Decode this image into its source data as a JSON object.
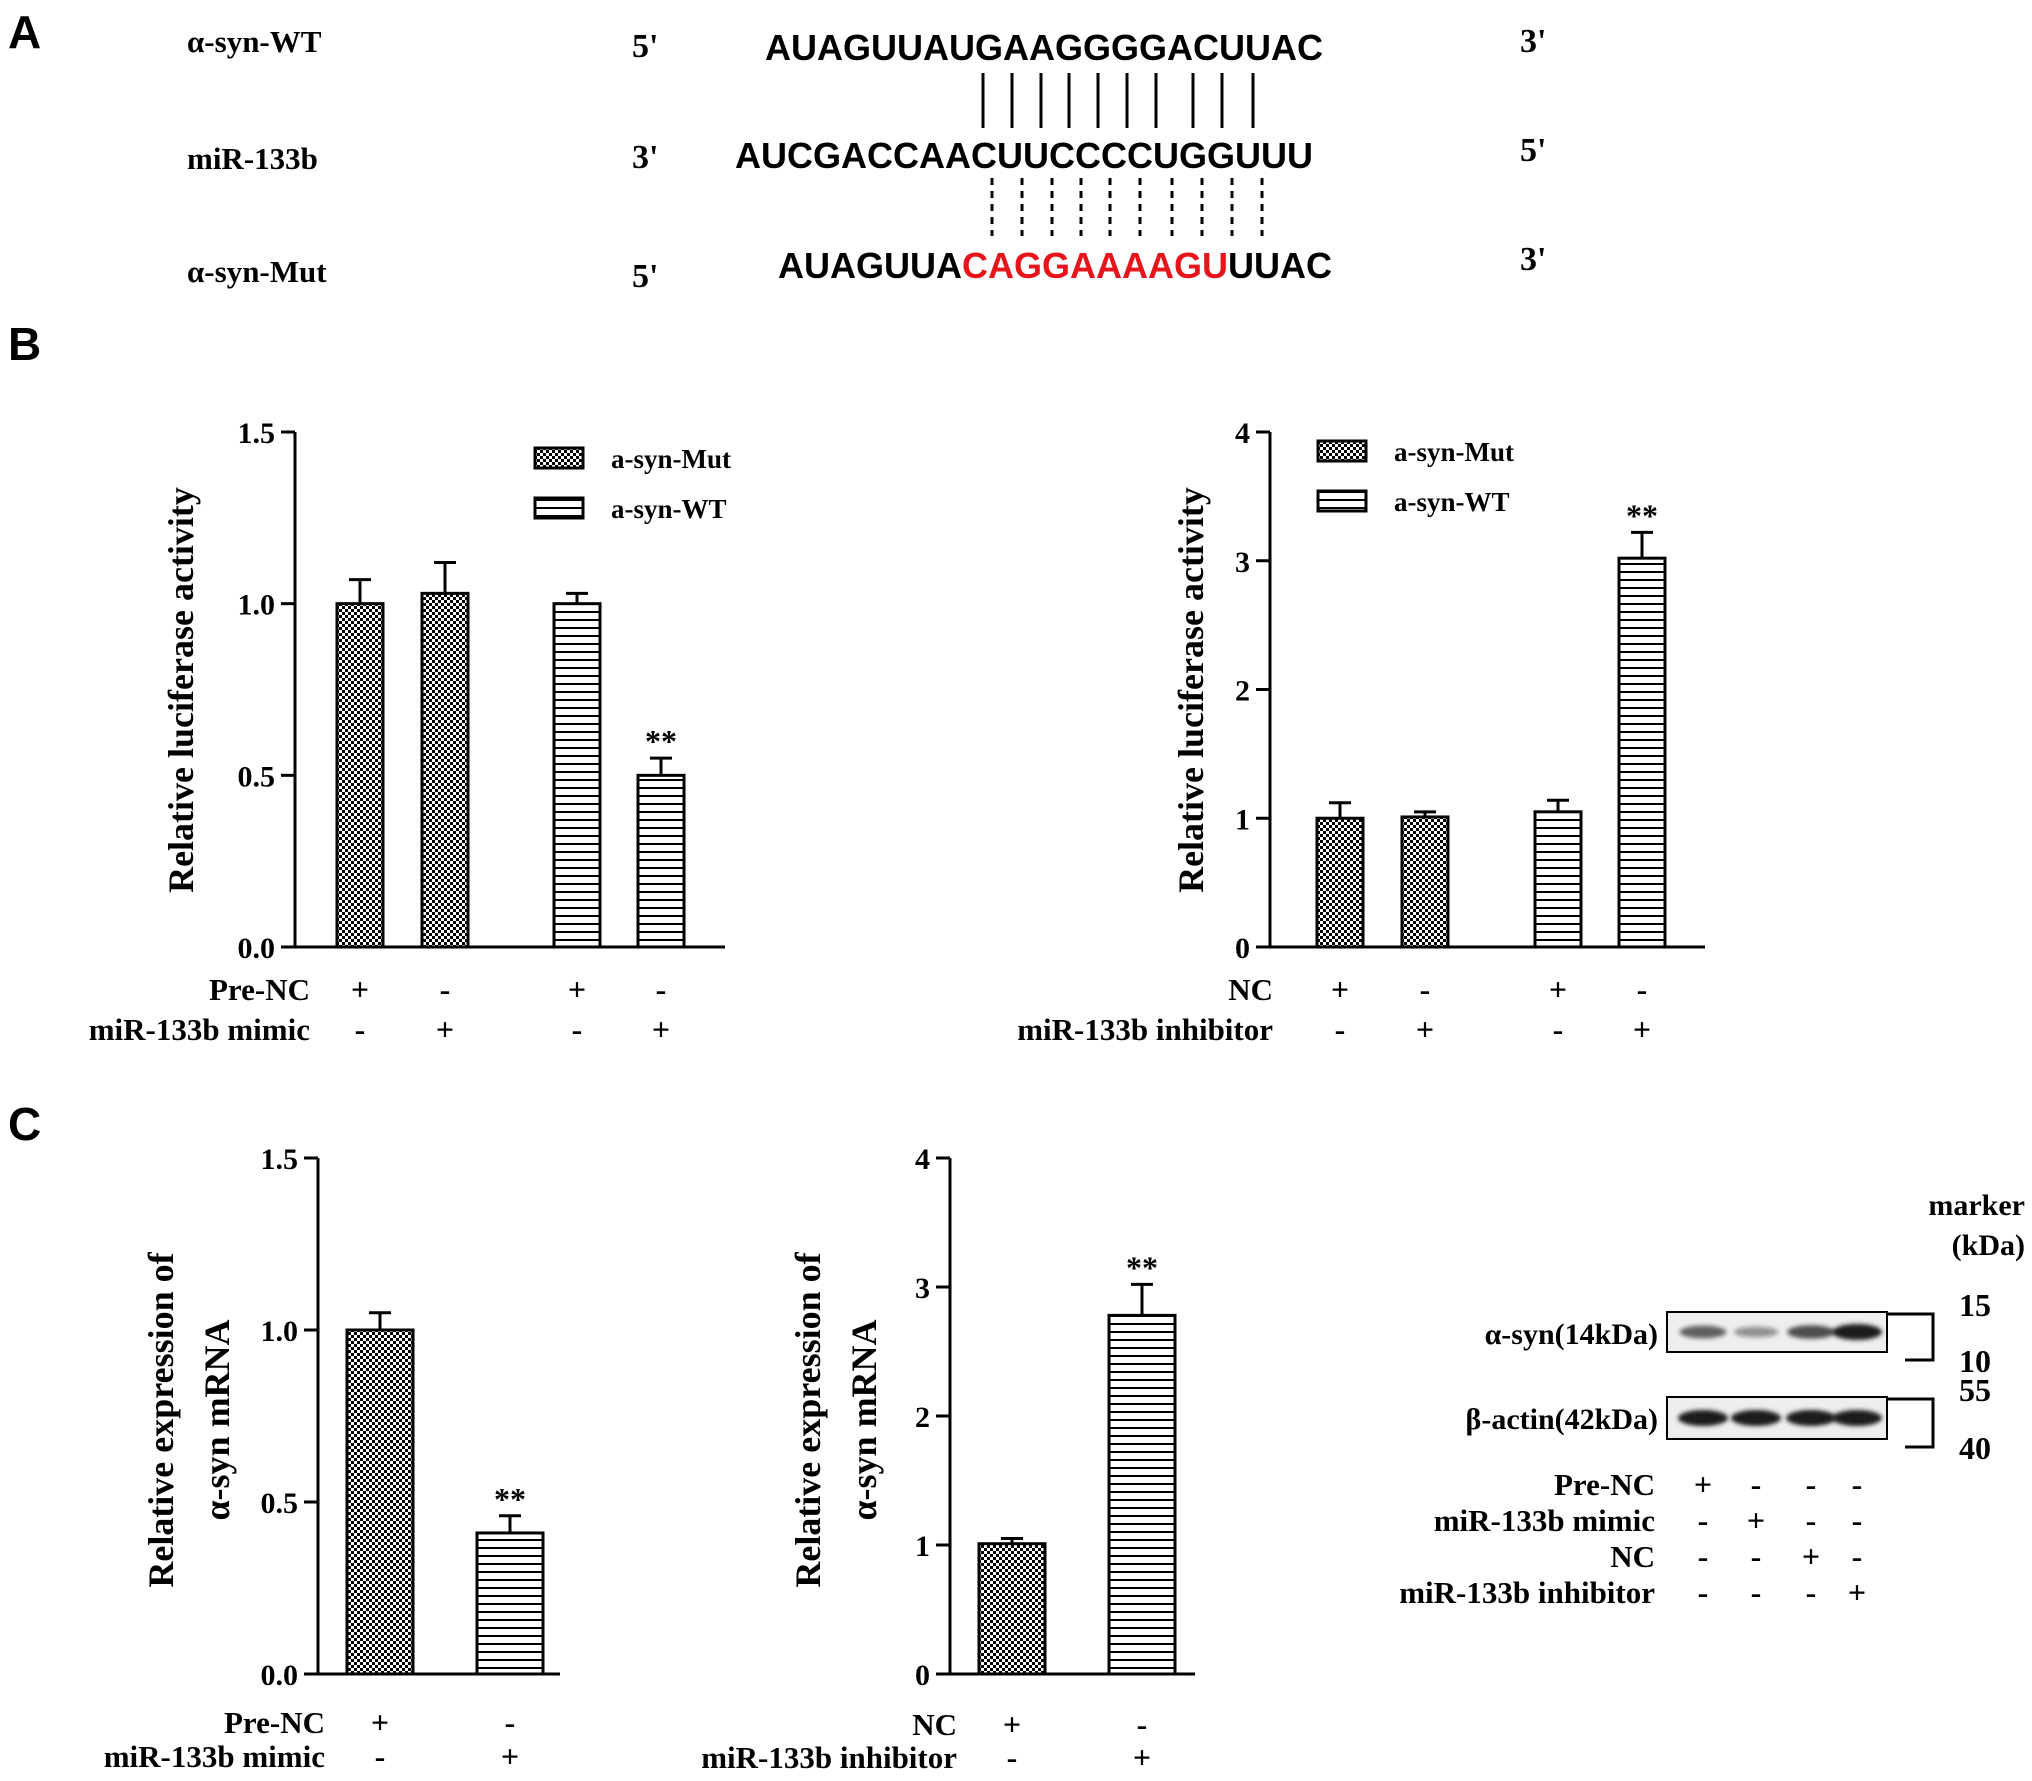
{
  "panels": {
    "a": "A",
    "b": "B",
    "c": "C"
  },
  "colors": {
    "mutant_highlight": "#e8141b",
    "bar_stroke": "#000000",
    "blot_band": "#1a1a1a",
    "blot_background": "#eeeeee"
  },
  "sequence_panel": {
    "rows": [
      {
        "label": "α-syn-WT",
        "end5": "5'",
        "end3": "3'",
        "segments": [
          {
            "text": "AUAGUUAUGAAGGGGACUUAC",
            "highlight": false
          }
        ]
      },
      {
        "label": "miR-133b",
        "end5": "3'",
        "end3": "5'",
        "segments": [
          {
            "text": "AUCGACCAACUUCCCCUGGUUU",
            "highlight": false
          }
        ]
      },
      {
        "label": "α-syn-Mut",
        "end5": "5'",
        "end3": "3'",
        "segments": [
          {
            "text": "AUAGUUA",
            "highlight": false
          },
          {
            "text": "CAGGAAAAGU",
            "highlight": true
          },
          {
            "text": "UUAC",
            "highlight": false
          }
        ]
      }
    ]
  },
  "chart_data": [
    {
      "id": "b-left",
      "type": "bar",
      "ylabel": [
        "Relative luciferase activity"
      ],
      "ylim": [
        0,
        1.5
      ],
      "yticks": [
        "0.0",
        "0.5",
        "1.0",
        "1.5"
      ],
      "legend": [
        {
          "name": "a-syn-Mut",
          "pattern": "checker"
        },
        {
          "name": "a-syn-WT",
          "pattern": "hlines"
        }
      ],
      "bars": [
        {
          "series": "a-syn-Mut",
          "value": 1.0,
          "error": 0.07,
          "sig": ""
        },
        {
          "series": "a-syn-Mut",
          "value": 1.03,
          "error": 0.09,
          "sig": ""
        },
        {
          "series": "a-syn-WT",
          "value": 1.0,
          "error": 0.03,
          "sig": ""
        },
        {
          "series": "a-syn-WT",
          "value": 0.5,
          "error": 0.05,
          "sig": "**"
        }
      ],
      "conditions": [
        {
          "label": "Pre-NC",
          "marks": [
            "+",
            "-",
            "+",
            "-"
          ]
        },
        {
          "label": "miR-133b mimic",
          "marks": [
            "-",
            "+",
            "-",
            "+"
          ]
        }
      ]
    },
    {
      "id": "b-right",
      "type": "bar",
      "ylabel": [
        "Relative luciferase activity"
      ],
      "ylim": [
        0,
        4
      ],
      "yticks": [
        "0",
        "1",
        "2",
        "3",
        "4"
      ],
      "legend": [
        {
          "name": "a-syn-Mut",
          "pattern": "checker"
        },
        {
          "name": "a-syn-WT",
          "pattern": "hlines"
        }
      ],
      "bars": [
        {
          "series": "a-syn-Mut",
          "value": 1.0,
          "error": 0.12,
          "sig": ""
        },
        {
          "series": "a-syn-Mut",
          "value": 1.01,
          "error": 0.04,
          "sig": ""
        },
        {
          "series": "a-syn-WT",
          "value": 1.05,
          "error": 0.09,
          "sig": ""
        },
        {
          "series": "a-syn-WT",
          "value": 3.02,
          "error": 0.2,
          "sig": "**"
        }
      ],
      "conditions": [
        {
          "label": "NC",
          "marks": [
            "+",
            "-",
            "+",
            "-"
          ]
        },
        {
          "label": "miR-133b inhibitor",
          "marks": [
            "-",
            "+",
            "-",
            "+"
          ]
        }
      ]
    },
    {
      "id": "c-left",
      "type": "bar",
      "ylabel": [
        "Relative expression of",
        "α-syn mRNA"
      ],
      "ylim": [
        0,
        1.5
      ],
      "yticks": [
        "0.0",
        "0.5",
        "1.0",
        "1.5"
      ],
      "legend": [],
      "bars": [
        {
          "series": "",
          "pattern": "checker",
          "value": 1.0,
          "error": 0.05,
          "sig": ""
        },
        {
          "series": "",
          "pattern": "hlines",
          "value": 0.41,
          "error": 0.05,
          "sig": "**"
        }
      ],
      "conditions": [
        {
          "label": "Pre-NC",
          "marks": [
            "+",
            "-"
          ]
        },
        {
          "label": "miR-133b mimic",
          "marks": [
            "-",
            "+"
          ]
        }
      ]
    },
    {
      "id": "c-mid",
      "type": "bar",
      "ylabel": [
        "Relative expression of",
        "α-syn mRNA"
      ],
      "ylim": [
        0,
        4
      ],
      "yticks": [
        "0",
        "1",
        "2",
        "3",
        "4"
      ],
      "legend": [],
      "bars": [
        {
          "series": "",
          "pattern": "checker",
          "value": 1.01,
          "error": 0.04,
          "sig": ""
        },
        {
          "series": "",
          "pattern": "hlines",
          "value": 2.78,
          "error": 0.24,
          "sig": "**"
        }
      ],
      "conditions": [
        {
          "label": "NC",
          "marks": [
            "+",
            "-"
          ]
        },
        {
          "label": "miR-133b inhibitor",
          "marks": [
            "-",
            "+"
          ]
        }
      ]
    }
  ],
  "western_blot": {
    "marker_title": [
      "marker",
      "(kDa)"
    ],
    "blots": [
      {
        "label": "α-syn(14kDa)",
        "markers": [
          "15",
          "10"
        ],
        "band_intensity": [
          0.6,
          0.3,
          0.7,
          1.0
        ]
      },
      {
        "label": "β-actin(42kDa)",
        "markers": [
          "55",
          "40"
        ],
        "band_intensity": [
          1.0,
          1.0,
          1.0,
          1.0
        ]
      }
    ],
    "conditions": [
      {
        "label": "Pre-NC",
        "marks": [
          "+",
          "-",
          "-",
          "-"
        ]
      },
      {
        "label": "miR-133b mimic",
        "marks": [
          "-",
          "+",
          "-",
          "-"
        ]
      },
      {
        "label": "NC",
        "marks": [
          "-",
          "-",
          "+",
          "-"
        ]
      },
      {
        "label": "miR-133b inhibitor",
        "marks": [
          "-",
          "-",
          "-",
          "+"
        ]
      }
    ]
  }
}
